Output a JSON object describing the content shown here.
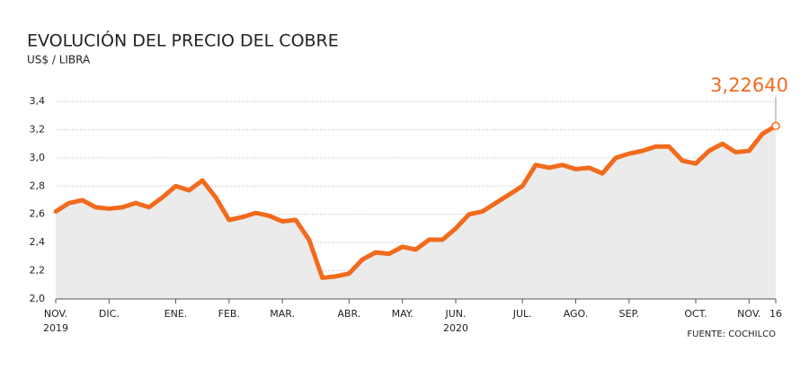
{
  "chart_data": {
    "type": "line",
    "title": "EVOLUCIÓN DEL PRECIO DEL COBRE",
    "subtitle": "US$ / LIBRA",
    "source": "FUENTE: COCHILCO",
    "categories": [
      "NOV.",
      null,
      null,
      null,
      "DIC.",
      null,
      null,
      null,
      null,
      "ENE.",
      null,
      null,
      null,
      "FEB.",
      null,
      null,
      null,
      "MAR.",
      null,
      null,
      null,
      null,
      "ABR.",
      null,
      null,
      null,
      "MAY.",
      null,
      null,
      null,
      "JUN.",
      null,
      null,
      null,
      null,
      "JUL.",
      null,
      null,
      null,
      "AGO.",
      null,
      null,
      null,
      "SEP.",
      null,
      null,
      null,
      null,
      "OCT.",
      null,
      null,
      null,
      "NOV.",
      null,
      "16"
    ],
    "years": [
      "2019",
      "2020"
    ],
    "values": [
      2.62,
      2.68,
      2.7,
      2.65,
      2.64,
      2.65,
      2.68,
      2.65,
      2.72,
      2.8,
      2.77,
      2.84,
      2.72,
      2.56,
      2.58,
      2.61,
      2.59,
      2.55,
      2.56,
      2.42,
      2.15,
      2.16,
      2.18,
      2.28,
      2.33,
      2.32,
      2.37,
      2.35,
      2.42,
      2.42,
      2.5,
      2.6,
      2.62,
      2.68,
      2.74,
      2.8,
      2.95,
      2.93,
      2.95,
      2.92,
      2.93,
      2.89,
      3.0,
      3.03,
      3.05,
      3.08,
      3.08,
      2.98,
      2.96,
      3.05,
      3.1,
      3.04,
      3.05,
      3.17,
      3.2264
    ],
    "annotation": {
      "value": 3.2264,
      "label": "3,22640"
    },
    "color": "#f26b1d",
    "area_color": "#ebebeb",
    "ylim": [
      2.0,
      3.4
    ],
    "yticks": [
      {
        "value": 2.0,
        "label": "2,0"
      },
      {
        "value": 2.2,
        "label": "2,2"
      },
      {
        "value": 2.4,
        "label": "2,4"
      },
      {
        "value": 2.6,
        "label": "2,6"
      },
      {
        "value": 2.8,
        "label": "2,8"
      },
      {
        "value": 3.0,
        "label": "3,0"
      },
      {
        "value": 3.2,
        "label": "3,2"
      },
      {
        "value": 3.4,
        "label": "3,4"
      }
    ],
    "grid": true
  }
}
